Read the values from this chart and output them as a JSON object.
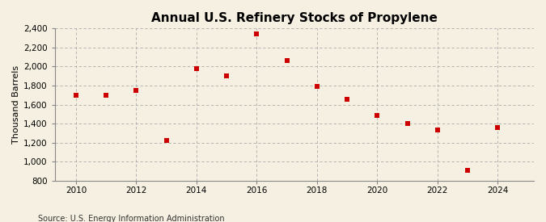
{
  "title": "Annual U.S. Refinery Stocks of Propylene",
  "ylabel": "Thousand Barrels",
  "source": "Source: U.S. Energy Information Administration",
  "background_color": "#f5f0e1",
  "years": [
    2010,
    2011,
    2012,
    2013,
    2014,
    2015,
    2016,
    2017,
    2018,
    2019,
    2020,
    2021,
    2022,
    2023,
    2024
  ],
  "values": [
    1700,
    1700,
    1750,
    1220,
    1980,
    1900,
    2340,
    2060,
    1790,
    1660,
    1490,
    1400,
    1330,
    910,
    1360
  ],
  "marker_color": "#cc0000",
  "marker": "s",
  "marker_size": 4,
  "ylim": [
    800,
    2400
  ],
  "yticks": [
    800,
    1000,
    1200,
    1400,
    1600,
    1800,
    2000,
    2200,
    2400
  ],
  "xlim": [
    2009.3,
    2025.2
  ],
  "xticks": [
    2010,
    2012,
    2014,
    2016,
    2018,
    2020,
    2022,
    2024
  ],
  "grid_color": "#aaaaaa",
  "grid_style": "--",
  "title_fontsize": 11,
  "label_fontsize": 8,
  "tick_fontsize": 7.5,
  "source_fontsize": 7
}
